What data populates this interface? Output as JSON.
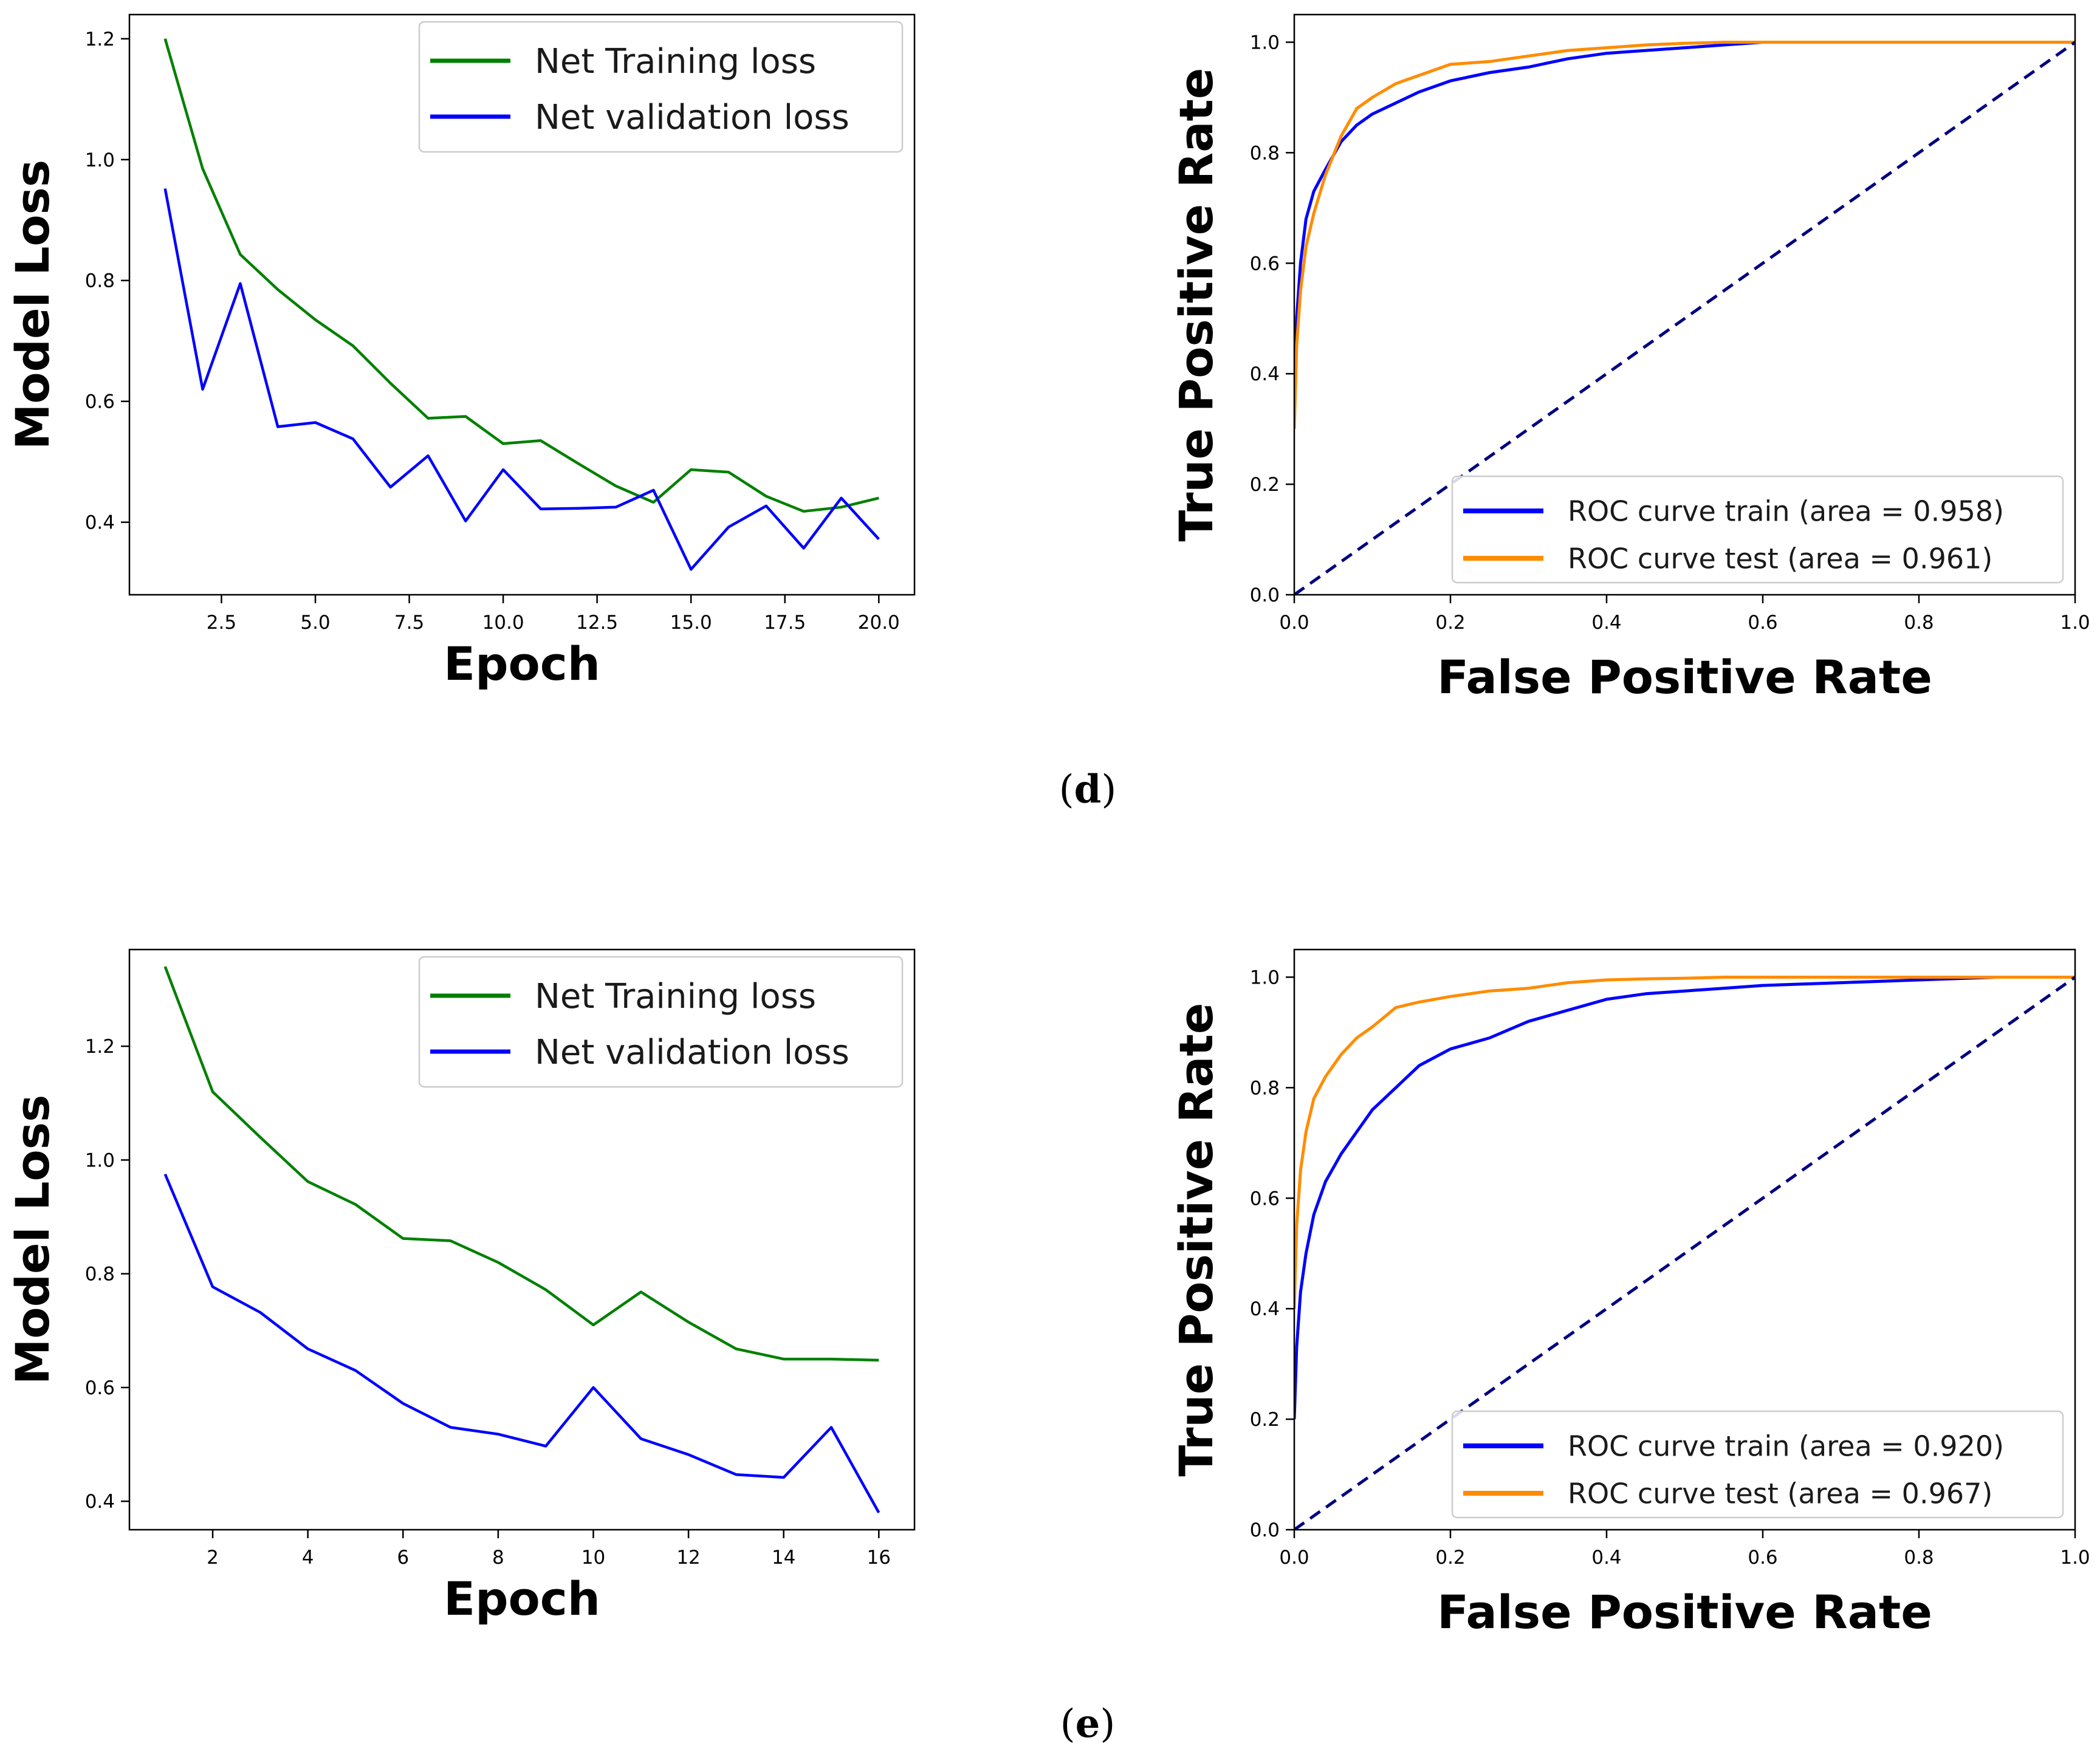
{
  "panels": [
    {
      "label": "d",
      "loss_chart": {
        "type": "line",
        "xlabel": "Epoch",
        "ylabel": "Model Loss",
        "xlim": [
          0.05,
          20.95
        ],
        "ylim": [
          0.28,
          1.24
        ],
        "xticks": [
          2.5,
          5.0,
          7.5,
          10.0,
          12.5,
          15.0,
          17.5,
          20.0
        ],
        "xtick_labels": [
          "2.5",
          "5.0",
          "7.5",
          "10.0",
          "12.5",
          "15.0",
          "17.5",
          "20.0"
        ],
        "yticks": [
          0.4,
          0.6,
          0.8,
          1.0,
          1.2
        ],
        "ytick_labels": [
          "0.4",
          "0.6",
          "0.8",
          "1.0",
          "1.2"
        ],
        "legend_position": "upper-right",
        "series": [
          {
            "name": "Net Training loss",
            "color": "#008000",
            "x": [
              1,
              2,
              3,
              4,
              5,
              6,
              7,
              8,
              9,
              10,
              11,
              12,
              13,
              14,
              15,
              16,
              17,
              18,
              19,
              20
            ],
            "y": [
              1.2,
              0.985,
              0.843,
              0.785,
              0.735,
              0.692,
              0.63,
              0.572,
              0.575,
              0.53,
              0.535,
              0.497,
              0.46,
              0.433,
              0.487,
              0.483,
              0.443,
              0.418,
              0.425,
              0.44
            ]
          },
          {
            "name": "Net validation loss",
            "color": "#0000ff",
            "x": [
              1,
              2,
              3,
              4,
              5,
              6,
              7,
              8,
              9,
              10,
              11,
              12,
              13,
              14,
              15,
              16,
              17,
              18,
              19,
              20
            ],
            "y": [
              0.952,
              0.62,
              0.795,
              0.558,
              0.565,
              0.538,
              0.458,
              0.51,
              0.402,
              0.487,
              0.422,
              0.423,
              0.425,
              0.453,
              0.322,
              0.392,
              0.427,
              0.357,
              0.44,
              0.372
            ]
          }
        ]
      },
      "roc_chart": {
        "type": "line",
        "xlabel": "False Positive Rate",
        "ylabel": "True Positive Rate",
        "xlim": [
          0.0,
          1.0
        ],
        "ylim": [
          0.0,
          1.05
        ],
        "xticks": [
          0.0,
          0.2,
          0.4,
          0.6,
          0.8,
          1.0
        ],
        "xtick_labels": [
          "0.0",
          "0.2",
          "0.4",
          "0.6",
          "0.8",
          "1.0"
        ],
        "yticks": [
          0.0,
          0.2,
          0.4,
          0.6,
          0.8,
          1.0
        ],
        "ytick_labels": [
          "0.0",
          "0.2",
          "0.4",
          "0.6",
          "0.8",
          "1.0"
        ],
        "legend_position": "lower-right",
        "diagonal_color": "#000080",
        "series": [
          {
            "name": "ROC curve train (area = 0.958)",
            "color": "#0000ff",
            "x": [
              0,
              0.003,
              0.008,
              0.015,
              0.025,
              0.04,
              0.06,
              0.08,
              0.1,
              0.13,
              0.16,
              0.2,
              0.25,
              0.3,
              0.35,
              0.4,
              0.45,
              0.5,
              0.55,
              0.6,
              0.7,
              0.8,
              0.9,
              1.0
            ],
            "y": [
              0.38,
              0.5,
              0.6,
              0.68,
              0.73,
              0.77,
              0.82,
              0.85,
              0.87,
              0.89,
              0.91,
              0.93,
              0.945,
              0.955,
              0.97,
              0.98,
              0.985,
              0.99,
              0.995,
              1.0,
              1.0,
              1.0,
              1.0,
              1.0
            ]
          },
          {
            "name": "ROC curve test (area = 0.961)",
            "color": "#ff8c00",
            "x": [
              0,
              0.003,
              0.008,
              0.015,
              0.025,
              0.04,
              0.06,
              0.08,
              0.1,
              0.13,
              0.16,
              0.2,
              0.25,
              0.3,
              0.35,
              0.4,
              0.45,
              0.5,
              0.55,
              0.6,
              0.7,
              0.8,
              0.9,
              1.0
            ],
            "y": [
              0.3,
              0.45,
              0.55,
              0.63,
              0.69,
              0.76,
              0.83,
              0.88,
              0.9,
              0.925,
              0.94,
              0.96,
              0.965,
              0.975,
              0.985,
              0.99,
              0.995,
              0.998,
              1.0,
              1.0,
              1.0,
              1.0,
              1.0,
              1.0
            ]
          },
          {
            "name": "",
            "color": "#000080",
            "dashed": true,
            "x": [
              0.0,
              1.0
            ],
            "y": [
              0.0,
              1.0
            ]
          }
        ]
      }
    },
    {
      "label": "e",
      "loss_chart": {
        "type": "line",
        "xlabel": "Epoch",
        "ylabel": "Model Loss",
        "xlim": [
          0.25,
          16.75
        ],
        "ylim": [
          0.35,
          1.37
        ],
        "xticks": [
          2,
          4,
          6,
          8,
          10,
          12,
          14,
          16
        ],
        "xtick_labels": [
          "2",
          "4",
          "6",
          "8",
          "10",
          "12",
          "14",
          "16"
        ],
        "yticks": [
          0.4,
          0.6,
          0.8,
          1.0,
          1.2
        ],
        "ytick_labels": [
          "0.4",
          "0.6",
          "0.8",
          "1.0",
          "1.2"
        ],
        "legend_position": "upper-right",
        "series": [
          {
            "name": "Net Training loss",
            "color": "#008000",
            "x": [
              1,
              2,
              3,
              4,
              5,
              6,
              7,
              8,
              9,
              10,
              11,
              12,
              13,
              14,
              15,
              16
            ],
            "y": [
              1.34,
              1.12,
              1.04,
              0.962,
              0.922,
              0.862,
              0.858,
              0.82,
              0.772,
              0.71,
              0.768,
              0.715,
              0.668,
              0.65,
              0.65,
              0.648
            ]
          },
          {
            "name": "Net validation loss",
            "color": "#0000ff",
            "x": [
              1,
              2,
              3,
              4,
              5,
              6,
              7,
              8,
              9,
              10,
              11,
              12,
              13,
              14,
              15,
              16
            ],
            "y": [
              0.975,
              0.777,
              0.732,
              0.668,
              0.63,
              0.572,
              0.53,
              0.518,
              0.497,
              0.6,
              0.51,
              0.482,
              0.447,
              0.442,
              0.53,
              0.38
            ]
          }
        ]
      },
      "roc_chart": {
        "type": "line",
        "xlabel": "False Positive Rate",
        "ylabel": "True Positive Rate",
        "xlim": [
          0.0,
          1.0
        ],
        "ylim": [
          0.0,
          1.05
        ],
        "xticks": [
          0.0,
          0.2,
          0.4,
          0.6,
          0.8,
          1.0
        ],
        "xtick_labels": [
          "0.0",
          "0.2",
          "0.4",
          "0.6",
          "0.8",
          "1.0"
        ],
        "yticks": [
          0.0,
          0.2,
          0.4,
          0.6,
          0.8,
          1.0
        ],
        "ytick_labels": [
          "0.0",
          "0.2",
          "0.4",
          "0.6",
          "0.8",
          "1.0"
        ],
        "legend_position": "lower-right",
        "diagonal_color": "#000080",
        "series": [
          {
            "name": "ROC curve train (area = 0.920)",
            "color": "#0000ff",
            "x": [
              0,
              0.003,
              0.008,
              0.015,
              0.025,
              0.04,
              0.06,
              0.08,
              0.1,
              0.13,
              0.16,
              0.2,
              0.25,
              0.3,
              0.35,
              0.4,
              0.45,
              0.5,
              0.55,
              0.6,
              0.7,
              0.8,
              0.9,
              1.0
            ],
            "y": [
              0.2,
              0.33,
              0.43,
              0.5,
              0.57,
              0.63,
              0.68,
              0.72,
              0.76,
              0.8,
              0.84,
              0.87,
              0.89,
              0.92,
              0.94,
              0.96,
              0.97,
              0.975,
              0.98,
              0.985,
              0.99,
              0.995,
              1.0,
              1.0
            ]
          },
          {
            "name": "ROC curve test (area = 0.967)",
            "color": "#ff8c00",
            "x": [
              0,
              0.003,
              0.008,
              0.015,
              0.025,
              0.04,
              0.06,
              0.08,
              0.1,
              0.13,
              0.16,
              0.2,
              0.25,
              0.3,
              0.35,
              0.4,
              0.45,
              0.5,
              0.55,
              0.6,
              0.7,
              0.8,
              0.9,
              1.0
            ],
            "y": [
              0.4,
              0.55,
              0.65,
              0.72,
              0.78,
              0.82,
              0.86,
              0.89,
              0.91,
              0.945,
              0.955,
              0.965,
              0.975,
              0.98,
              0.99,
              0.995,
              0.997,
              0.998,
              1.0,
              1.0,
              1.0,
              1.0,
              1.0,
              1.0
            ]
          },
          {
            "name": "",
            "color": "#000080",
            "dashed": true,
            "x": [
              0.0,
              1.0
            ],
            "y": [
              0.0,
              1.0
            ]
          }
        ]
      }
    }
  ]
}
